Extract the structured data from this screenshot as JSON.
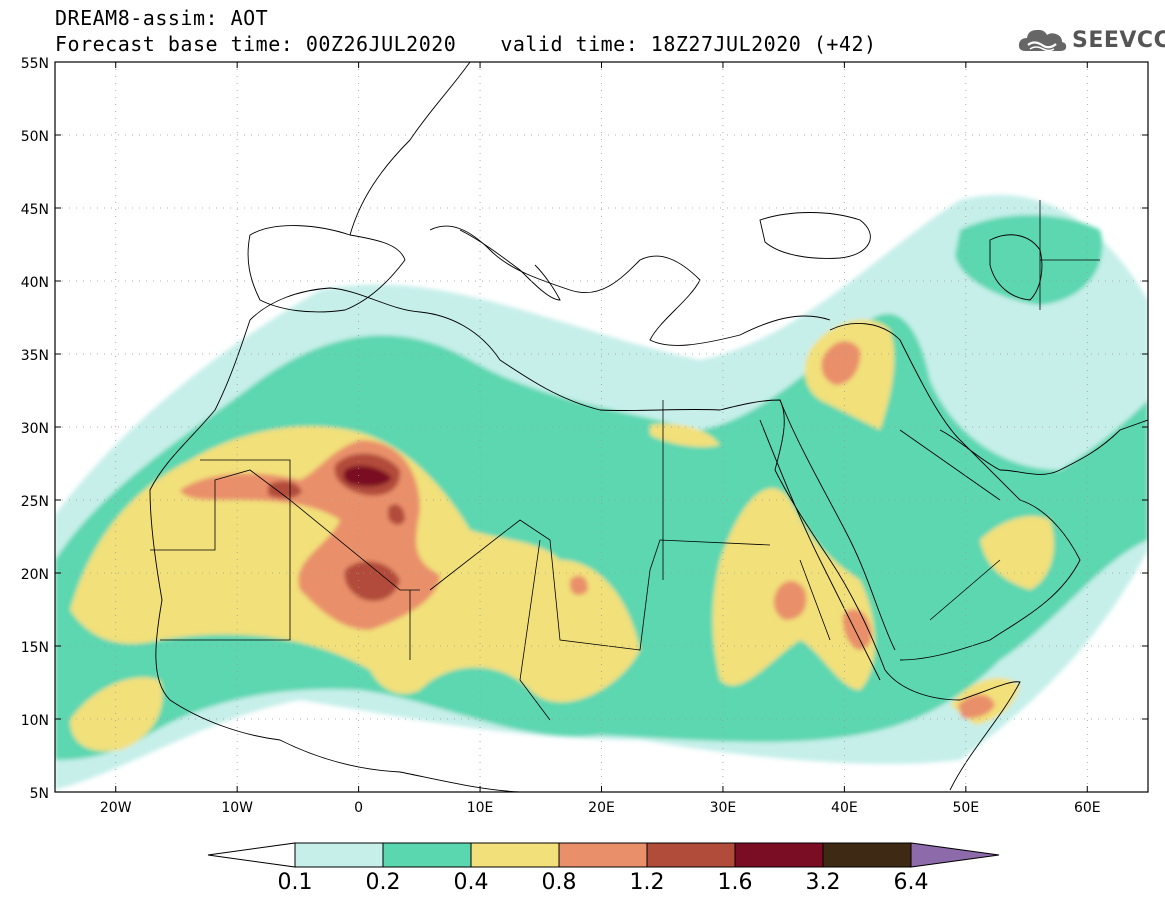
{
  "header": {
    "title": "DREAM8-assim: AOT",
    "base_time": "Forecast base time: 00Z26JUL2020",
    "valid_time": "valid time: 18Z27JUL2020 (+42)"
  },
  "logo": {
    "text": "SEEVCCC",
    "icon": "cloud-icon"
  },
  "map": {
    "lat_labels": [
      "55N",
      "50N",
      "45N",
      "40N",
      "35N",
      "30N",
      "25N",
      "20N",
      "15N",
      "10N",
      "5N"
    ],
    "lon_labels": [
      "20W",
      "10W",
      "0",
      "10E",
      "20E",
      "30E",
      "40E",
      "50E",
      "60E"
    ],
    "lat_values": [
      55,
      50,
      45,
      40,
      35,
      30,
      25,
      20,
      15,
      10,
      5
    ],
    "lon_values": [
      -20,
      -10,
      0,
      10,
      20,
      30,
      40,
      50,
      60
    ],
    "extent": {
      "lon_min": -25,
      "lon_max": 65,
      "lat_min": 5,
      "lat_max": 55
    }
  },
  "colorbar": {
    "labels": [
      "0.1",
      "0.2",
      "0.4",
      "0.8",
      "1.2",
      "1.6",
      "3.2",
      "6.4"
    ],
    "colors": [
      "#c6efea",
      "#5bd7b0",
      "#f2e07a",
      "#e9906a",
      "#b24c3a",
      "#7a0d24",
      "#3e2a14"
    ],
    "under_color": "#ffffff",
    "over_color": "#8d6bab"
  }
}
